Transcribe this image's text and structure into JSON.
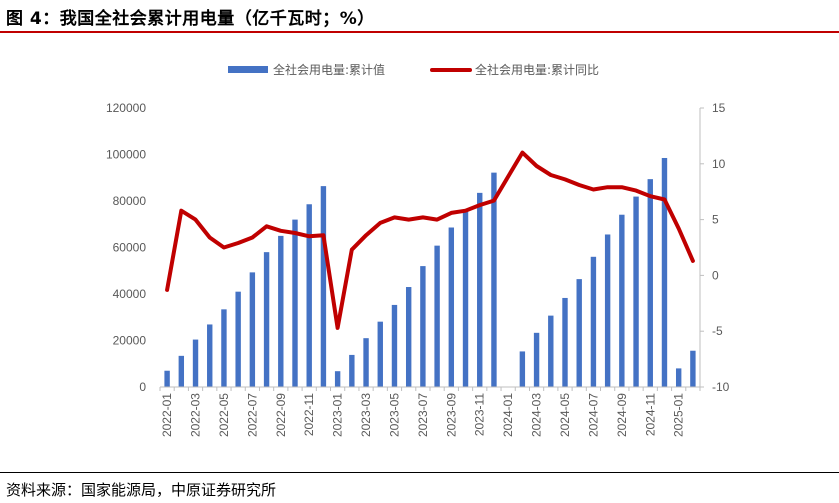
{
  "header": {
    "title": "图 4：我国全社会累计用电量（亿千瓦时；%）"
  },
  "footer": {
    "source": "资料来源：国家能源局，中原证券研究所"
  },
  "colors": {
    "bar": "#4472c4",
    "line": "#c00000",
    "rule": "#c00000"
  },
  "chart_data": {
    "type": "bar",
    "legend_position": "top",
    "grid": false,
    "categories": [
      "2022-01",
      "2022-02",
      "2022-03",
      "2022-04",
      "2022-05",
      "2022-06",
      "2022-07",
      "2022-08",
      "2022-09",
      "2022-10",
      "2022-11",
      "2022-12",
      "2023-01",
      "2023-02",
      "2023-03",
      "2023-04",
      "2023-05",
      "2023-06",
      "2023-07",
      "2023-08",
      "2023-09",
      "2023-10",
      "2023-11",
      "2023-12",
      "2024-01",
      "2024-02",
      "2024-03",
      "2024-04",
      "2024-05",
      "2024-06",
      "2024-07",
      "2024-08",
      "2024-09",
      "2024-10",
      "2024-11",
      "2024-12",
      "2025-01",
      "2025-02"
    ],
    "xtick_labels": [
      "2022-01",
      "2022-03",
      "2022-05",
      "2022-07",
      "2022-09",
      "2022-11",
      "2023-01",
      "2023-03",
      "2023-05",
      "2023-07",
      "2023-09",
      "2023-11",
      "2024-01",
      "2024-03",
      "2024-05",
      "2024-07",
      "2024-09",
      "2024-11",
      "2025-01"
    ],
    "y_left": {
      "min": 0,
      "max": 120000,
      "ticks": [
        "0",
        "20000",
        "40000",
        "60000",
        "80000",
        "100000",
        "120000"
      ]
    },
    "y_right": {
      "min": -10,
      "max": 15,
      "ticks": [
        "-10",
        "-5",
        "0",
        "5",
        "10",
        "15"
      ]
    },
    "series": [
      {
        "name": "全社会用电量:累计值",
        "kind": "bar",
        "axis": "left",
        "values": [
          7000,
          13400,
          20400,
          26900,
          33400,
          41000,
          49300,
          58000,
          65000,
          72000,
          78600,
          86400,
          6800,
          13800,
          21000,
          28100,
          35300,
          43000,
          52000,
          60800,
          68600,
          76100,
          83500,
          92200,
          null,
          15300,
          23300,
          30700,
          38300,
          46400,
          56000,
          65600,
          74100,
          81900,
          89400,
          98500,
          8000,
          15600
        ]
      },
      {
        "name": "全社会用电量:累计同比",
        "kind": "line",
        "axis": "right",
        "values": [
          -1.3,
          5.8,
          5.0,
          3.4,
          2.5,
          2.9,
          3.4,
          4.4,
          4.0,
          3.8,
          3.5,
          3.6,
          -4.7,
          2.3,
          3.6,
          4.7,
          5.2,
          5.0,
          5.2,
          5.0,
          5.6,
          5.8,
          6.3,
          6.7,
          null,
          11.0,
          9.8,
          9.0,
          8.6,
          8.1,
          7.7,
          7.9,
          7.9,
          7.6,
          7.1,
          6.8,
          4.2,
          1.3
        ]
      }
    ]
  }
}
